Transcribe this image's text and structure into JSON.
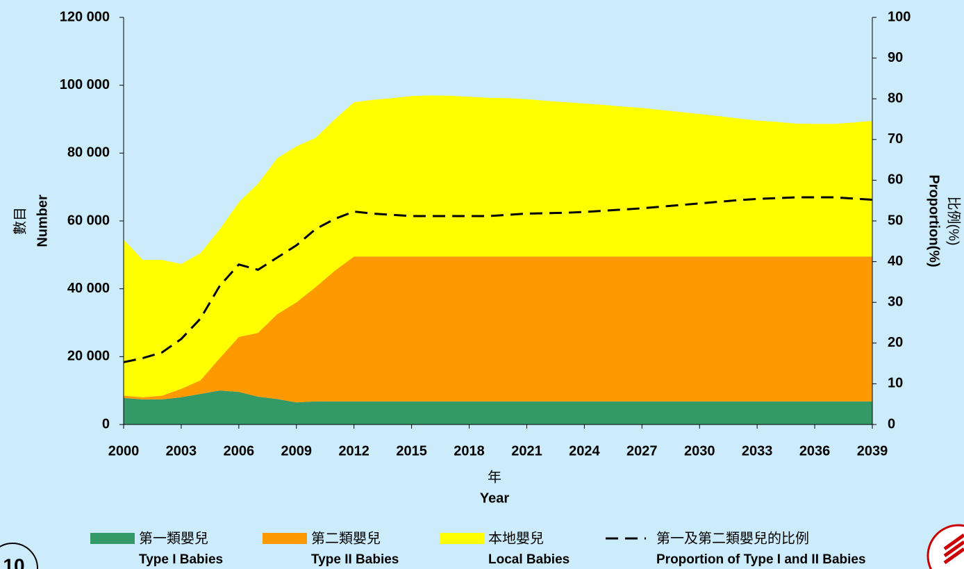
{
  "chart_data": {
    "type": "stacked-area",
    "x": [
      2000,
      2001,
      2002,
      2003,
      2004,
      2005,
      2006,
      2007,
      2008,
      2009,
      2010,
      2011,
      2012,
      2013,
      2014,
      2015,
      2016,
      2017,
      2018,
      2019,
      2020,
      2021,
      2022,
      2023,
      2024,
      2025,
      2026,
      2027,
      2028,
      2029,
      2030,
      2031,
      2032,
      2033,
      2034,
      2035,
      2036,
      2037,
      2038,
      2039
    ],
    "series": [
      {
        "name": "第一類嬰兒",
        "name_en": "Type I Babies",
        "color": "#339966",
        "values": [
          7800,
          7400,
          7400,
          8000,
          9000,
          10000,
          9600,
          8200,
          7500,
          6500,
          6800,
          6800,
          6800,
          6800,
          6800,
          6800,
          6800,
          6800,
          6800,
          6800,
          6800,
          6800,
          6800,
          6800,
          6800,
          6800,
          6800,
          6800,
          6800,
          6800,
          6800,
          6800,
          6800,
          6800,
          6800,
          6800,
          6800,
          6800,
          6800,
          6800
        ]
      },
      {
        "name": "第二類嬰兒",
        "name_en": "Type II Babies",
        "color": "#ff9900",
        "values": [
          700,
          600,
          1100,
          2500,
          4000,
          9500,
          16200,
          18800,
          25000,
          29500,
          33700,
          38500,
          42700,
          42700,
          42700,
          42700,
          42700,
          42700,
          42700,
          42700,
          42700,
          42700,
          42700,
          42700,
          42700,
          42700,
          42700,
          42700,
          42700,
          42700,
          42700,
          42700,
          42700,
          42700,
          42700,
          42700,
          42700,
          42700,
          42700,
          42700
        ]
      },
      {
        "name": "本地嬰兒",
        "name_en": "Local Babies",
        "color": "#ffff00",
        "values": [
          46000,
          40500,
          40000,
          36800,
          37500,
          38000,
          39700,
          44000,
          46000,
          46000,
          44000,
          44700,
          45500,
          46200,
          46700,
          47300,
          47500,
          47400,
          47100,
          46800,
          46700,
          46400,
          45900,
          45500,
          45100,
          44700,
          44200,
          43800,
          43200,
          42600,
          42000,
          41400,
          40700,
          40100,
          39700,
          39200,
          39100,
          39100,
          39500,
          40000
        ]
      },
      {
        "name": "第一及第二類嬰兒的比例",
        "name_en": "Proportion of Type I and II Babies",
        "color": "#000000",
        "axis": "y2",
        "kind": "line",
        "dashed": true,
        "values": [
          15.3,
          16.3,
          17.7,
          21,
          26,
          34,
          39.3,
          38,
          41,
          44,
          48,
          50.5,
          52.3,
          51.8,
          51.5,
          51.2,
          51.2,
          51.2,
          51.2,
          51.2,
          51.5,
          51.8,
          51.9,
          52,
          52.2,
          52.5,
          52.8,
          53.1,
          53.5,
          53.9,
          54.3,
          54.7,
          55.1,
          55.4,
          55.6,
          55.8,
          55.8,
          55.8,
          55.5,
          55.2
        ]
      }
    ],
    "xlim": [
      2000,
      2039
    ],
    "xticks": [
      2000,
      2003,
      2006,
      2009,
      2012,
      2015,
      2018,
      2021,
      2024,
      2027,
      2030,
      2033,
      2036,
      2039
    ],
    "ylim": [
      0,
      120000
    ],
    "yticks": [
      0,
      {
        "value": 20000,
        "label": "20 000"
      },
      {
        "value": 40000,
        "label": "40 000"
      },
      {
        "value": 60000,
        "label": "60 000"
      },
      {
        "value": 80000,
        "label": "80 000"
      },
      {
        "value": 100000,
        "label": "100 000"
      },
      {
        "value": 120000,
        "label": "120 000"
      }
    ],
    "y2lim": [
      0,
      100
    ],
    "y2ticks": [
      0,
      10,
      20,
      30,
      40,
      50,
      60,
      70,
      80,
      90,
      100
    ],
    "ylabel": "數目",
    "ylabel_en": "Number",
    "y2label": "比例(%)",
    "y2label_en": "Proportion(%)",
    "xlabel": "年",
    "xlabel_en": "Year",
    "page_number": "10"
  }
}
